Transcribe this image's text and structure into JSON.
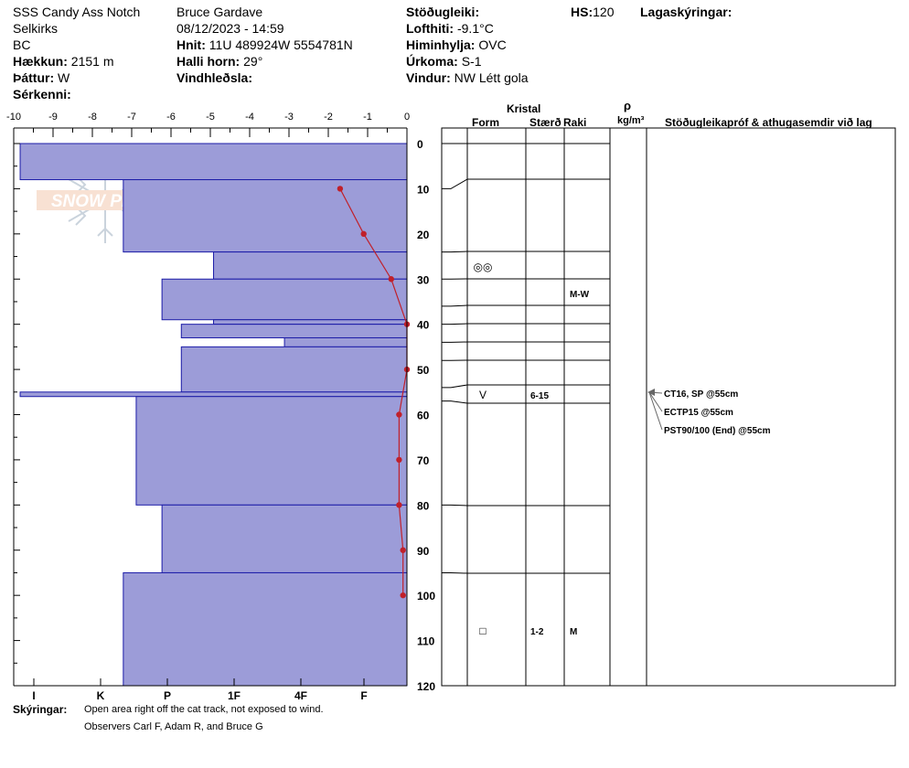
{
  "header": {
    "location": "SSS Candy Ass Notch",
    "range": "Selkirks",
    "region": "BC",
    "elevation_label": "Hækkun:",
    "elevation_value": "2151 m",
    "aspect_label": "Þáttur:",
    "aspect_value": "W",
    "features_label": "Sérkenni:",
    "observer": "Bruce Gardave",
    "datetime": "08/12/2023 - 14:59",
    "coords_label": "Hnit:",
    "coords_value": "11U 489924W 5554781N",
    "slope_label": "Halli horn:",
    "slope_value": "29°",
    "wind_loading_label": "Vindhleðsla:",
    "stability_label": "Stöðugleiki:",
    "air_temp_label": "Lofthiti:",
    "air_temp_value": "-9.1°C",
    "sky_label": "Himinhylja:",
    "sky_value": "OVC",
    "precip_label": "Úrkoma:",
    "precip_value": "S-1",
    "wind_label": "Vindur:",
    "wind_value": "NW Létt gola",
    "hs_label": "HS:",
    "hs_value": "120",
    "legend_label": "Lagaskýringar:"
  },
  "columns": {
    "crystal": "Kristal",
    "form": "Form",
    "size": "Stærð",
    "moisture": "Raki",
    "rho": "ρ",
    "density_unit": "kg/m³",
    "tests": "Stöðugleikapróf & athugasemdir við lag"
  },
  "footer": {
    "label": "Skýringar:",
    "line1": "Open area right off the cat track, not exposed to wind.",
    "line2": "Observers Carl F, Adam R, and Bruce G"
  },
  "logo_text": "SNOW PILOT",
  "chart_data": {
    "type": "bar",
    "temp_axis": {
      "ticks": [
        -10,
        -9,
        -8,
        -7,
        -6,
        -5,
        -4,
        -3,
        -2,
        -1,
        0
      ],
      "labels": [
        "-10",
        "-9",
        "-8",
        "-7",
        "-6",
        "-5",
        "-4",
        "-3",
        "-2",
        "-1",
        "0"
      ],
      "range": [
        -10,
        0
      ]
    },
    "depth_axis": {
      "ticks": [
        0,
        10,
        20,
        30,
        40,
        50,
        60,
        70,
        80,
        90,
        100,
        110,
        120
      ],
      "labels": [
        "0",
        "10",
        "20",
        "30",
        "40",
        "50",
        "60",
        "70",
        "80",
        "90",
        "100",
        "110",
        "120"
      ],
      "range": [
        0,
        120
      ]
    },
    "hardness_axis": {
      "labels": [
        "I",
        "K",
        "P",
        "1F",
        "4F",
        "F"
      ],
      "values": [
        1,
        2,
        3,
        4,
        5,
        6
      ]
    },
    "hardness_bars": [
      {
        "top": 0,
        "bottom": 8,
        "hardness": 6
      },
      {
        "top": 8,
        "bottom": 24,
        "hardness": 4.4
      },
      {
        "top": 24,
        "bottom": 30,
        "hardness": 3
      },
      {
        "top": 30,
        "bottom": 39,
        "hardness": 3.8
      },
      {
        "top": 39,
        "bottom": 40,
        "hardness": 3
      },
      {
        "top": 40,
        "bottom": 43,
        "hardness": 3.5
      },
      {
        "top": 43,
        "bottom": 45,
        "hardness": 1.9
      },
      {
        "top": 45,
        "bottom": 55,
        "hardness": 3.5
      },
      {
        "top": 55,
        "bottom": 56,
        "hardness": 6
      },
      {
        "top": 56,
        "bottom": 80,
        "hardness": 4.2
      },
      {
        "top": 80,
        "bottom": 95,
        "hardness": 3.8
      },
      {
        "top": 95,
        "bottom": 120,
        "hardness": 4.4
      }
    ],
    "temperature_profile": {
      "depth": [
        10,
        20,
        30,
        40,
        50,
        60,
        70,
        80,
        90,
        100
      ],
      "temp": [
        -1.7,
        -1.1,
        -0.4,
        0,
        0,
        -0.2,
        -0.2,
        -0.2,
        -0.1,
        -0.1
      ]
    },
    "layer_boundaries": [
      0,
      10,
      24,
      30,
      36,
      40,
      44,
      48,
      54,
      57,
      80,
      95,
      120
    ],
    "layer_entries": [
      {
        "depth": 27,
        "form": "◎◎",
        "size": "",
        "moisture": ""
      },
      {
        "depth": 33,
        "form": "",
        "size": "",
        "moisture": "M-W"
      },
      {
        "depth": 55.5,
        "form": "V",
        "size": "6-15",
        "moisture": ""
      },
      {
        "depth": 108,
        "form": "□",
        "size": "1-2",
        "moisture": "M"
      }
    ],
    "tests": [
      {
        "depth": 55,
        "text": "CT16, SP @55cm"
      },
      {
        "depth": 55,
        "text": "ECTP15 @55cm"
      },
      {
        "depth": 55,
        "text": "PST90/100 (End) @55cm"
      }
    ]
  }
}
